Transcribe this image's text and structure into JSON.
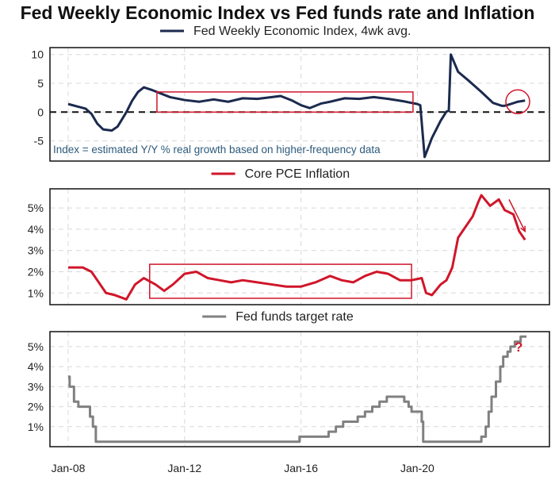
{
  "title": "Fed Weekly Economic Index vs Fed funds rate and Inflation",
  "colors": {
    "wei": "#1b2a4e",
    "pce": "#d0162a",
    "ffr": "#808080",
    "highlight": "#d0162a"
  },
  "chart_data": [
    {
      "type": "line",
      "legend": "Fed Weekly Economic Index, 4wk avg.",
      "annotation": "Index = estimated Y/Y % real growth based on higher-frequency data",
      "yticks": [
        "10",
        "5",
        "0",
        "-5"
      ],
      "ytick_values": [
        10,
        5,
        0,
        -5
      ],
      "ylim": [
        -8.5,
        11.2
      ],
      "zero_line": true,
      "highlight_box": {
        "x": [
          2011.05,
          2019.85
        ],
        "y": [
          0,
          3.5
        ]
      },
      "highlight_circle": {
        "x": 2023.45,
        "y": 1.8
      },
      "x": [
        2008.0,
        2008.3,
        2008.6,
        2008.8,
        2009.0,
        2009.2,
        2009.5,
        2009.7,
        2010.0,
        2010.2,
        2010.4,
        2010.6,
        2010.9,
        2011.2,
        2011.5,
        2012.0,
        2012.5,
        2013.0,
        2013.5,
        2014.0,
        2014.5,
        2015.0,
        2015.3,
        2015.7,
        2016.0,
        2016.3,
        2016.7,
        2017.0,
        2017.5,
        2018.0,
        2018.5,
        2019.0,
        2019.5,
        2020.0,
        2020.1,
        2020.25,
        2020.5,
        2020.8,
        2021.0,
        2021.08,
        2021.15,
        2021.4,
        2021.8,
        2022.2,
        2022.6,
        2022.9,
        2023.0,
        2023.2,
        2023.45,
        2023.7
      ],
      "y": [
        1.4,
        1.0,
        0.6,
        -0.3,
        -2.0,
        -3.0,
        -3.2,
        -2.5,
        0,
        2.0,
        3.5,
        4.3,
        3.8,
        3.2,
        2.6,
        2.1,
        1.8,
        2.2,
        1.8,
        2.4,
        2.3,
        2.6,
        2.8,
        2.0,
        1.2,
        0.7,
        1.5,
        1.8,
        2.4,
        2.3,
        2.6,
        2.3,
        1.9,
        1.4,
        1.2,
        -7.8,
        -4.5,
        -1.5,
        0.1,
        0.2,
        10.0,
        7.0,
        5.3,
        3.5,
        1.6,
        1.1,
        1.1,
        1.4,
        1.8,
        2.0
      ]
    },
    {
      "type": "line",
      "legend": "Core PCE Inflation",
      "yticks": [
        "5%",
        "4%",
        "3%",
        "2%",
        "1%"
      ],
      "ytick_values": [
        5,
        4,
        3,
        2,
        1
      ],
      "ylim": [
        0.45,
        5.9
      ],
      "highlight_box": {
        "x": [
          2010.8,
          2019.8
        ],
        "y": [
          0.75,
          2.35
        ]
      },
      "trend_arrow": {
        "from": [
          2023.15,
          5.4
        ],
        "to": [
          2023.7,
          3.9
        ]
      },
      "x": [
        2008.0,
        2008.5,
        2008.8,
        2009.0,
        2009.3,
        2009.6,
        2010.0,
        2010.3,
        2010.6,
        2011.0,
        2011.3,
        2011.6,
        2012.0,
        2012.4,
        2012.8,
        2013.2,
        2013.6,
        2014.0,
        2014.5,
        2015.0,
        2015.5,
        2016.0,
        2016.5,
        2017.0,
        2017.4,
        2017.8,
        2018.2,
        2018.6,
        2019.0,
        2019.4,
        2019.8,
        2020.15,
        2020.3,
        2020.5,
        2020.8,
        2021.0,
        2021.2,
        2021.4,
        2021.6,
        2021.9,
        2022.1,
        2022.2,
        2022.5,
        2022.8,
        2023.0,
        2023.3,
        2023.5,
        2023.7
      ],
      "y": [
        2.2,
        2.2,
        2.0,
        1.6,
        1.0,
        0.9,
        0.7,
        1.4,
        1.7,
        1.4,
        1.1,
        1.4,
        1.9,
        2.0,
        1.7,
        1.6,
        1.5,
        1.6,
        1.5,
        1.4,
        1.3,
        1.3,
        1.5,
        1.8,
        1.6,
        1.5,
        1.8,
        2.0,
        1.9,
        1.6,
        1.6,
        1.7,
        1.0,
        0.9,
        1.4,
        1.6,
        2.2,
        3.6,
        4.0,
        4.6,
        5.3,
        5.6,
        5.1,
        5.4,
        4.9,
        4.7,
        3.9,
        3.5
      ]
    },
    {
      "type": "line",
      "legend": "Fed funds target rate",
      "annotation": "?",
      "yticks": [
        "5%",
        "4%",
        "3%",
        "2%",
        "1%"
      ],
      "ytick_values": [
        5,
        4,
        3,
        2,
        1
      ],
      "ylim": [
        0,
        5.75
      ],
      "step": true,
      "xticks": [
        "Jan-08",
        "Jan-12",
        "Jan-16",
        "Jan-20"
      ],
      "xtick_values": [
        2008,
        2012,
        2016,
        2020
      ],
      "x": [
        2008.0,
        2008.05,
        2008.2,
        2008.35,
        2008.75,
        2008.85,
        2008.95,
        2015.95,
        2016.95,
        2017.2,
        2017.45,
        2017.95,
        2018.2,
        2018.45,
        2018.7,
        2018.95,
        2019.55,
        2019.7,
        2019.8,
        2020.15,
        2020.2,
        2022.2,
        2022.35,
        2022.45,
        2022.55,
        2022.7,
        2022.85,
        2022.95,
        2023.1,
        2023.2,
        2023.35,
        2023.55,
        2023.75
      ],
      "y": [
        3.5,
        3.0,
        2.25,
        2.0,
        1.5,
        1.0,
        0.25,
        0.5,
        0.75,
        1.0,
        1.25,
        1.5,
        1.75,
        2.0,
        2.25,
        2.5,
        2.25,
        2.0,
        1.75,
        1.25,
        0.25,
        0.5,
        1.0,
        1.75,
        2.5,
        3.25,
        4.0,
        4.5,
        4.75,
        5.0,
        5.25,
        5.5,
        5.5
      ]
    }
  ]
}
